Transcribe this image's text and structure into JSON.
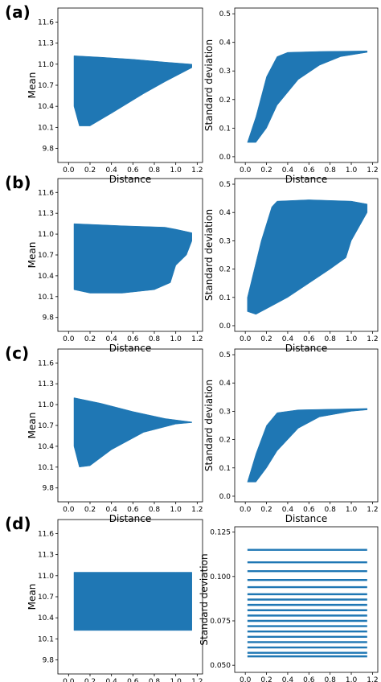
{
  "colors": {
    "series": "#1f77b4",
    "axis": "#000000",
    "background": "#ffffff"
  },
  "panel_labels": [
    "(a)",
    "(b)",
    "(c)",
    "(d)"
  ],
  "chart_data": [
    {
      "panel": "(a)",
      "type": "area",
      "xlabel": "Distance",
      "ylabel": "Mean",
      "xlim": [
        -0.1,
        1.25
      ],
      "ylim": [
        9.6,
        11.8
      ],
      "xticks": [
        "0.0",
        "0.2",
        "0.4",
        "0.6",
        "0.8",
        "1.0",
        "1.2"
      ],
      "yticks": [
        "9.8",
        "10.1",
        "10.4",
        "10.7",
        "11.0",
        "11.3",
        "11.6"
      ],
      "series": [
        {
          "upper": [
            [
              0.05,
              11.12
            ],
            [
              0.3,
              11.1
            ],
            [
              0.6,
              11.07
            ],
            [
              0.9,
              11.03
            ],
            [
              1.15,
              11.0
            ]
          ],
          "lower": [
            [
              0.05,
              10.4
            ],
            [
              0.1,
              10.12
            ],
            [
              0.2,
              10.12
            ],
            [
              0.4,
              10.3
            ],
            [
              0.7,
              10.58
            ],
            [
              0.9,
              10.75
            ],
            [
              1.15,
              10.95
            ]
          ]
        }
      ]
    },
    {
      "panel": "(a)",
      "type": "area",
      "xlabel": "Distance",
      "ylabel": "Standard deviation",
      "xlim": [
        -0.1,
        1.25
      ],
      "ylim": [
        -0.02,
        0.52
      ],
      "xticks": [
        "0.0",
        "0.2",
        "0.4",
        "0.6",
        "0.8",
        "1.0",
        "1.2"
      ],
      "yticks": [
        "0.0",
        "0.1",
        "0.2",
        "0.3",
        "0.4",
        "0.5"
      ],
      "series": [
        {
          "upper": [
            [
              0.02,
              0.05
            ],
            [
              0.1,
              0.14
            ],
            [
              0.2,
              0.28
            ],
            [
              0.3,
              0.35
            ],
            [
              0.4,
              0.365
            ],
            [
              0.7,
              0.368
            ],
            [
              1.15,
              0.37
            ]
          ],
          "lower": [
            [
              0.02,
              0.05
            ],
            [
              0.1,
              0.05
            ],
            [
              0.2,
              0.1
            ],
            [
              0.3,
              0.18
            ],
            [
              0.5,
              0.27
            ],
            [
              0.7,
              0.32
            ],
            [
              0.9,
              0.35
            ],
            [
              1.15,
              0.365
            ]
          ]
        }
      ]
    },
    {
      "panel": "(b)",
      "type": "area",
      "xlabel": "Distance",
      "ylabel": "Mean",
      "xlim": [
        -0.1,
        1.25
      ],
      "ylim": [
        9.6,
        11.8
      ],
      "xticks": [
        "0.0",
        "0.2",
        "0.4",
        "0.6",
        "0.8",
        "1.0",
        "1.2"
      ],
      "yticks": [
        "9.8",
        "10.1",
        "10.4",
        "10.7",
        "11.0",
        "11.3",
        "11.6"
      ],
      "series": [
        {
          "upper": [
            [
              0.05,
              11.15
            ],
            [
              0.5,
              11.12
            ],
            [
              0.9,
              11.1
            ],
            [
              1.0,
              11.07
            ],
            [
              1.15,
              11.02
            ]
          ],
          "lower": [
            [
              0.05,
              10.2
            ],
            [
              0.2,
              10.15
            ],
            [
              0.5,
              10.15
            ],
            [
              0.8,
              10.2
            ],
            [
              0.95,
              10.3
            ],
            [
              1.0,
              10.55
            ],
            [
              1.1,
              10.7
            ],
            [
              1.15,
              10.9
            ]
          ]
        }
      ]
    },
    {
      "panel": "(b)",
      "type": "area",
      "xlabel": "Distance",
      "ylabel": "Standard deviation",
      "xlim": [
        -0.1,
        1.25
      ],
      "ylim": [
        -0.02,
        0.52
      ],
      "xticks": [
        "0.0",
        "0.2",
        "0.4",
        "0.6",
        "0.8",
        "1.0",
        "1.2"
      ],
      "yticks": [
        "0.0",
        "0.1",
        "0.2",
        "0.3",
        "0.4",
        "0.5"
      ],
      "series": [
        {
          "upper": [
            [
              0.02,
              0.1
            ],
            [
              0.15,
              0.3
            ],
            [
              0.25,
              0.42
            ],
            [
              0.3,
              0.44
            ],
            [
              0.6,
              0.445
            ],
            [
              1.0,
              0.44
            ],
            [
              1.15,
              0.43
            ]
          ],
          "lower": [
            [
              0.02,
              0.05
            ],
            [
              0.1,
              0.04
            ],
            [
              0.2,
              0.06
            ],
            [
              0.4,
              0.1
            ],
            [
              0.6,
              0.15
            ],
            [
              0.8,
              0.2
            ],
            [
              0.95,
              0.24
            ],
            [
              1.0,
              0.3
            ],
            [
              1.15,
              0.4
            ]
          ]
        }
      ]
    },
    {
      "panel": "(c)",
      "type": "area",
      "xlabel": "Distance",
      "ylabel": "Mean",
      "xlim": [
        -0.1,
        1.25
      ],
      "ylim": [
        9.6,
        11.8
      ],
      "xticks": [
        "0.0",
        "0.2",
        "0.4",
        "0.6",
        "0.8",
        "1.0",
        "1.2"
      ],
      "yticks": [
        "9.8",
        "10.1",
        "10.4",
        "10.7",
        "11.0",
        "11.3",
        "11.6"
      ],
      "series": [
        {
          "upper": [
            [
              0.05,
              11.1
            ],
            [
              0.3,
              11.02
            ],
            [
              0.6,
              10.9
            ],
            [
              0.9,
              10.8
            ],
            [
              1.15,
              10.75
            ]
          ],
          "lower": [
            [
              0.05,
              10.4
            ],
            [
              0.1,
              10.1
            ],
            [
              0.2,
              10.12
            ],
            [
              0.4,
              10.35
            ],
            [
              0.7,
              10.6
            ],
            [
              1.0,
              10.72
            ],
            [
              1.15,
              10.74
            ]
          ]
        }
      ]
    },
    {
      "panel": "(c)",
      "type": "area",
      "xlabel": "Distance",
      "ylabel": "Standard deviation",
      "xlim": [
        -0.1,
        1.25
      ],
      "ylim": [
        -0.02,
        0.52
      ],
      "xticks": [
        "0.0",
        "0.2",
        "0.4",
        "0.6",
        "0.8",
        "1.0",
        "1.2"
      ],
      "yticks": [
        "0.0",
        "0.1",
        "0.2",
        "0.3",
        "0.4",
        "0.5"
      ],
      "series": [
        {
          "upper": [
            [
              0.02,
              0.05
            ],
            [
              0.1,
              0.15
            ],
            [
              0.2,
              0.25
            ],
            [
              0.3,
              0.295
            ],
            [
              0.5,
              0.305
            ],
            [
              1.15,
              0.31
            ]
          ],
          "lower": [
            [
              0.02,
              0.05
            ],
            [
              0.1,
              0.05
            ],
            [
              0.2,
              0.1
            ],
            [
              0.3,
              0.16
            ],
            [
              0.5,
              0.24
            ],
            [
              0.7,
              0.28
            ],
            [
              1.0,
              0.3
            ],
            [
              1.15,
              0.305
            ]
          ]
        }
      ]
    },
    {
      "panel": "(d)",
      "type": "area",
      "xlabel": "Distance",
      "ylabel": "Mean",
      "xlim": [
        -0.1,
        1.25
      ],
      "ylim": [
        9.6,
        11.8
      ],
      "xticks": [
        "0.0",
        "0.2",
        "0.4",
        "0.6",
        "0.8",
        "1.0",
        "1.2"
      ],
      "yticks": [
        "9.8",
        "10.1",
        "10.4",
        "10.7",
        "11.0",
        "11.3",
        "11.6"
      ],
      "series": [
        {
          "upper": [
            [
              0.05,
              11.05
            ],
            [
              1.0,
              11.05
            ],
            [
              1.15,
              11.05
            ]
          ],
          "lower": [
            [
              0.05,
              10.22
            ],
            [
              1.0,
              10.22
            ],
            [
              1.15,
              10.22
            ]
          ]
        }
      ]
    },
    {
      "panel": "(d)",
      "type": "line",
      "xlabel": "Distance",
      "ylabel": "Standard deviation",
      "xlim": [
        -0.1,
        1.25
      ],
      "ylim": [
        0.046,
        0.128
      ],
      "xticks": [
        "0.0",
        "0.2",
        "0.4",
        "0.6",
        "0.8",
        "1.0",
        "1.2"
      ],
      "yticks": [
        "0.050",
        "0.075",
        "0.100",
        "0.125"
      ],
      "series": [
        {
          "levels": [
            0.115,
            0.108,
            0.103,
            0.098,
            0.094,
            0.09,
            0.087,
            0.084,
            0.081,
            0.078,
            0.075,
            0.072,
            0.069,
            0.066,
            0.063,
            0.06,
            0.057,
            0.055
          ],
          "x_range": [
            0.02,
            1.15
          ]
        }
      ]
    }
  ]
}
